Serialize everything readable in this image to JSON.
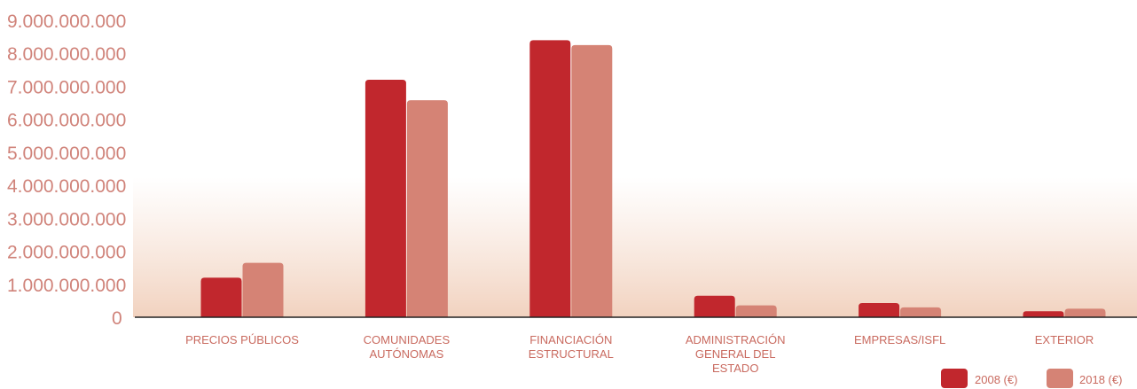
{
  "chart_data": {
    "type": "bar",
    "categories": [
      [
        "PRECIOS PÚBLICOS"
      ],
      [
        "COMUNIDADES",
        "AUTÓNOMAS"
      ],
      [
        "FINANCIACIÓN",
        "ESTRUCTURAL"
      ],
      [
        "ADMINISTRACIÓN",
        "GENERAL DEL",
        "ESTADO"
      ],
      [
        "EMPRESAS/ISFL"
      ],
      [
        "EXTERIOR"
      ]
    ],
    "series": [
      {
        "name": "2008 (€)",
        "color": "#c1272d",
        "values": [
          1200000000,
          7200000000,
          8400000000,
          650000000,
          430000000,
          180000000
        ]
      },
      {
        "name": "2018 (€)",
        "color": "#d58375",
        "values": [
          1650000000,
          6580000000,
          8250000000,
          360000000,
          300000000,
          260000000
        ]
      }
    ],
    "yticks": [
      "0",
      "1.000.000.000",
      "2.000.000.000",
      "3.000.000.000",
      "4.000.000.000",
      "5.000.000.000",
      "6.000.000.000",
      "7.000.000.000",
      "8.000.000.000",
      "9.000.000.000"
    ],
    "ylim": [
      0,
      9000000000
    ],
    "legend_position": "bottom-right",
    "grid": false
  }
}
